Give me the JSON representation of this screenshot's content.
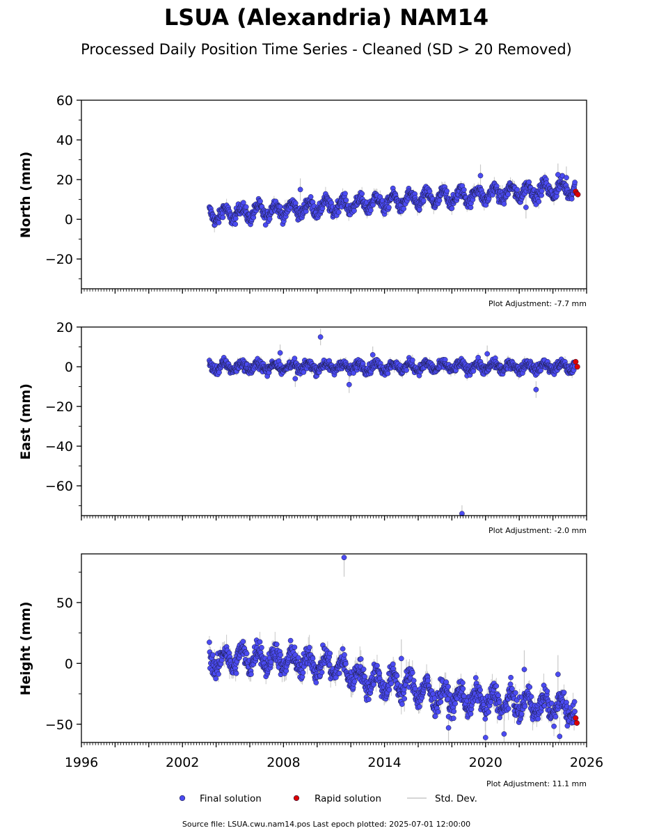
{
  "chart_data": {
    "type": "scatter",
    "title": "LSUA (Alexandria) NAM14",
    "subtitle": "Processed Daily Position Time Series - Cleaned (SD > 20 Removed)",
    "x_ticks": [
      "1996",
      "2002",
      "2008",
      "2014",
      "2020",
      "2026"
    ],
    "xlim": [
      1996,
      2026
    ],
    "colors": {
      "final": "#4b4bf2",
      "rapid": "#dd0000",
      "std_dev": "#c8c8c8",
      "edge": "#1a1a40"
    },
    "legend": {
      "placement": "bottom-center",
      "final": "Final solution",
      "rapid": "Rapid solution",
      "std_dev": "Std. Dev."
    },
    "source_text": "Source file: LSUA.cwu.nam14.pos  Last epoch plotted: 2025-07-01 12:00:00",
    "panels": [
      {
        "ylabel": "North (mm)",
        "ylim": [
          -35,
          60
        ],
        "y_ticks": [
          "60",
          "40",
          "20",
          "0",
          "−20"
        ],
        "y_tick_values": [
          60,
          40,
          20,
          0,
          -20
        ],
        "adjustment": "Plot Adjustment: -7.7 mm",
        "trend": [
          [
            2003.6,
            2.0
          ],
          [
            2025.4,
            16.0
          ]
        ],
        "seasonal_amplitude": 3.2,
        "noise": 1.6,
        "outliers": [
          [
            2009.0,
            15.0
          ],
          [
            2019.7,
            22.0
          ],
          [
            2024.3,
            22.5
          ],
          [
            2024.8,
            21.0
          ],
          [
            2022.4,
            6.0
          ]
        ],
        "rapid": [
          [
            2025.35,
            14.0
          ],
          [
            2025.42,
            13.0
          ],
          [
            2025.48,
            12.5
          ]
        ]
      },
      {
        "ylabel": "East (mm)",
        "ylim": [
          -75,
          20
        ],
        "y_ticks": [
          "20",
          "0",
          "−20",
          "−40",
          "−60"
        ],
        "y_tick_values": [
          20,
          0,
          -20,
          -40,
          -60
        ],
        "adjustment": "Plot Adjustment: -2.0 mm",
        "trend": [
          [
            2003.6,
            0.0
          ],
          [
            2025.4,
            0.0
          ]
        ],
        "seasonal_amplitude": 1.8,
        "noise": 1.2,
        "outliers": [
          [
            2010.2,
            15.0
          ],
          [
            2007.8,
            7.0
          ],
          [
            2008.7,
            -6.0
          ],
          [
            2011.9,
            -9.0
          ],
          [
            2018.6,
            -74.0
          ],
          [
            2023.0,
            -11.5
          ],
          [
            2013.3,
            6.0
          ],
          [
            2020.1,
            6.5
          ]
        ],
        "rapid": [
          [
            2025.35,
            2.5
          ],
          [
            2025.45,
            0.0
          ]
        ]
      },
      {
        "ylabel": "Height (mm)",
        "ylim": [
          -65,
          90
        ],
        "y_ticks": [
          "50",
          "0",
          "−50"
        ],
        "y_tick_values": [
          50,
          0,
          -50
        ],
        "adjustment": "Plot Adjustment: 11.1 mm",
        "trend": [
          [
            2003.6,
            2.0
          ],
          [
            2006.5,
            5.0
          ],
          [
            2011.0,
            -2.0
          ],
          [
            2013.0,
            -14.0
          ],
          [
            2015.5,
            -18.0
          ],
          [
            2017.0,
            -27.0
          ],
          [
            2025.4,
            -37.0
          ]
        ],
        "seasonal_amplitude": 8.0,
        "noise": 4.5,
        "outliers": [
          [
            2011.6,
            87.0
          ],
          [
            2020.0,
            -61.0
          ],
          [
            2021.1,
            -58.0
          ],
          [
            2024.4,
            -60.0
          ],
          [
            2017.8,
            -53.0
          ],
          [
            2015.0,
            4.0
          ],
          [
            2022.3,
            -5.0
          ],
          [
            2024.3,
            -9.0
          ]
        ],
        "rapid": [
          [
            2025.35,
            -45.0
          ],
          [
            2025.42,
            -49.0
          ]
        ]
      }
    ]
  }
}
